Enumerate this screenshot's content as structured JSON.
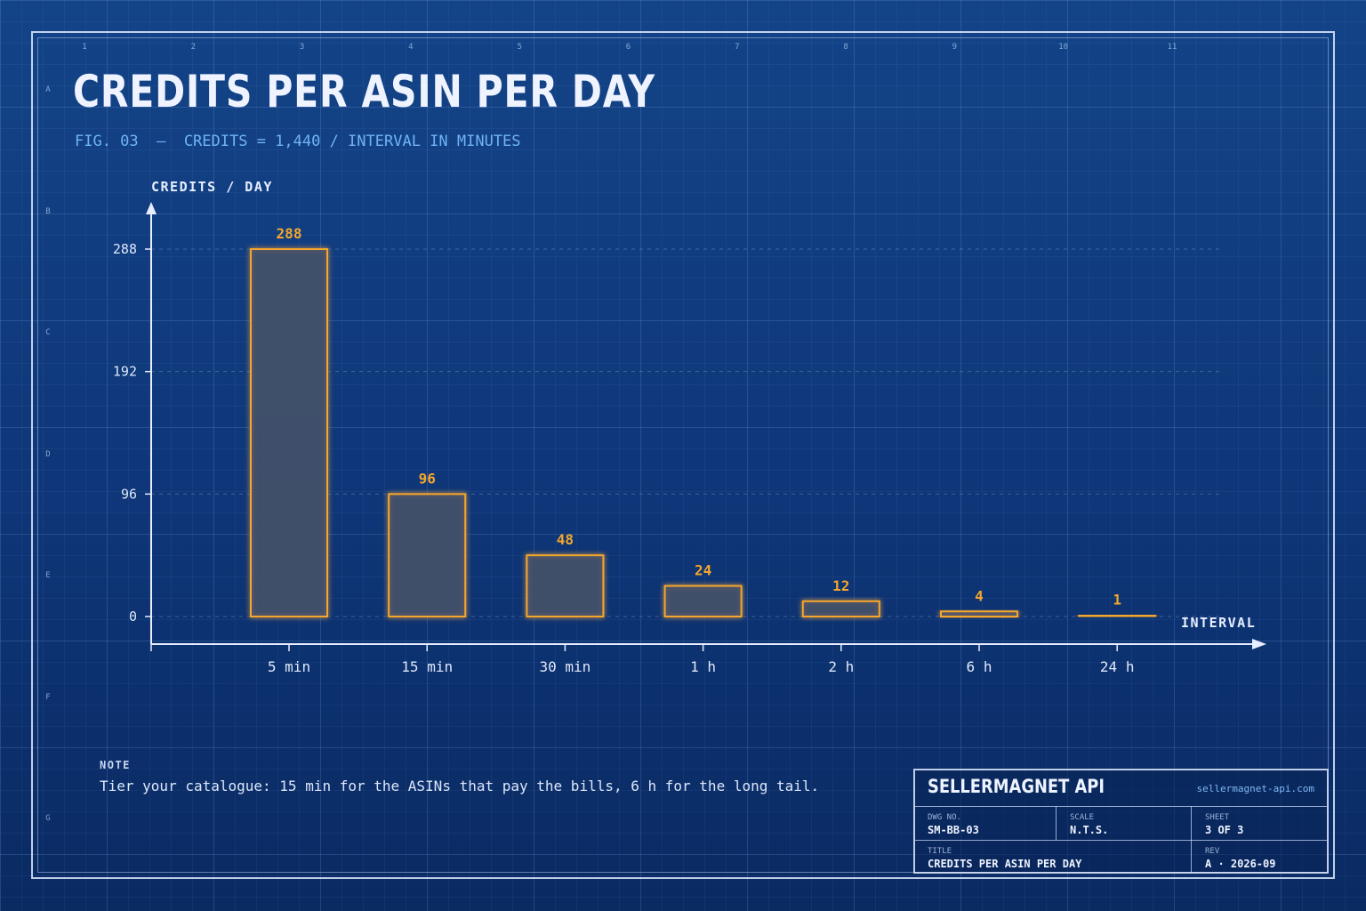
{
  "header": {
    "title": "CREDITS PER ASIN PER DAY",
    "subtitle": "FIG. 03  —  CREDITS = 1,440 / INTERVAL IN MINUTES"
  },
  "zones": {
    "columns": [
      "1",
      "2",
      "3",
      "4",
      "5",
      "6",
      "7",
      "8",
      "9",
      "10",
      "11"
    ],
    "rows": [
      "A",
      "B",
      "C",
      "D",
      "E",
      "F",
      "G"
    ]
  },
  "colors": {
    "accent": "#f4a72c",
    "bar_fill": "#41506a",
    "axis": "#e6eeff",
    "subtitle": "#6fb4f6",
    "background": "#0f3a7c"
  },
  "chart_data": {
    "type": "bar",
    "categories": [
      "5 min",
      "15 min",
      "30 min",
      "1 h",
      "2 h",
      "6 h",
      "24 h"
    ],
    "values": [
      288,
      96,
      48,
      24,
      12,
      4,
      1
    ],
    "data_labels": [
      "288",
      "96",
      "48",
      "24",
      "12",
      "4",
      "1"
    ],
    "xlabel": "INTERVAL",
    "ylabel": "CREDITS / DAY",
    "ylim": [
      0,
      288
    ],
    "yticks": [
      0,
      96,
      192,
      288
    ],
    "grid": true
  },
  "note": {
    "heading": "NOTE",
    "text": "Tier your catalogue: 15 min for the ASINs that pay the bills, 6 h for the long tail."
  },
  "title_block": {
    "brand": "SELLERMAGNET API",
    "url": "sellermagnet-api.com",
    "dwg_label": "DWG NO.",
    "dwg_value": "SM-BB-03",
    "scale_label": "SCALE",
    "scale_value": "N.T.S.",
    "sheet_label": "SHEET",
    "sheet_value": "3 OF 3",
    "title_label": "TITLE",
    "title_value": "CREDITS PER ASIN PER DAY",
    "rev_label": "REV",
    "rev_value": "A · 2026-09"
  }
}
